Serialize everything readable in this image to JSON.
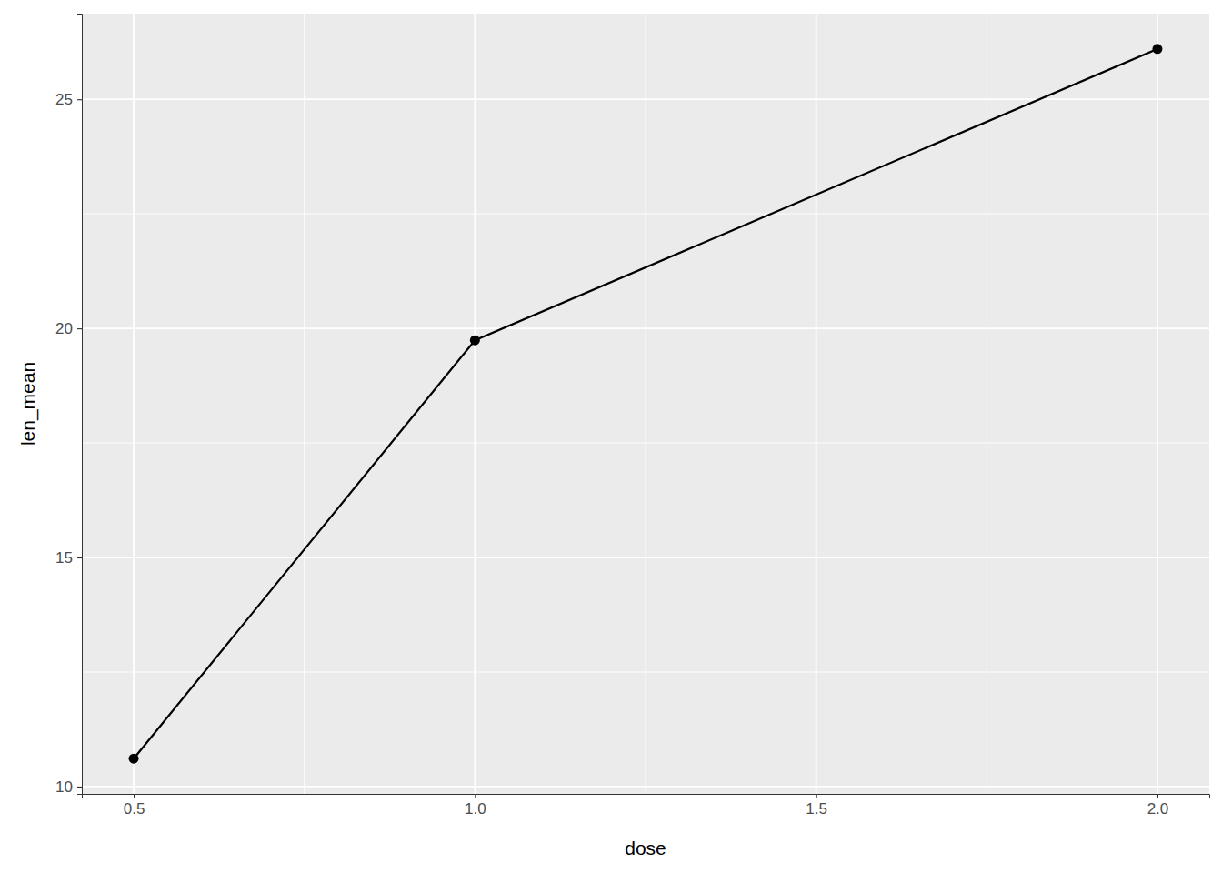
{
  "chart_data": {
    "type": "line",
    "x_label": "dose",
    "y_label": "len_mean",
    "x": [
      0.5,
      1.0,
      2.0
    ],
    "values": [
      10.61,
      19.74,
      26.1
    ],
    "color": "#000000",
    "marker": "circle",
    "line_style": "solid",
    "xlim": [
      0.424,
      2.076
    ],
    "xticks": [
      0.5,
      {
        "value": 1,
        "label": "1.0"
      },
      1.5,
      {
        "value": 2,
        "label": "2.0"
      }
    ],
    "ylim": [
      9.84,
      26.87
    ],
    "yticks": [
      10,
      15,
      20,
      25
    ],
    "grid": true
  }
}
